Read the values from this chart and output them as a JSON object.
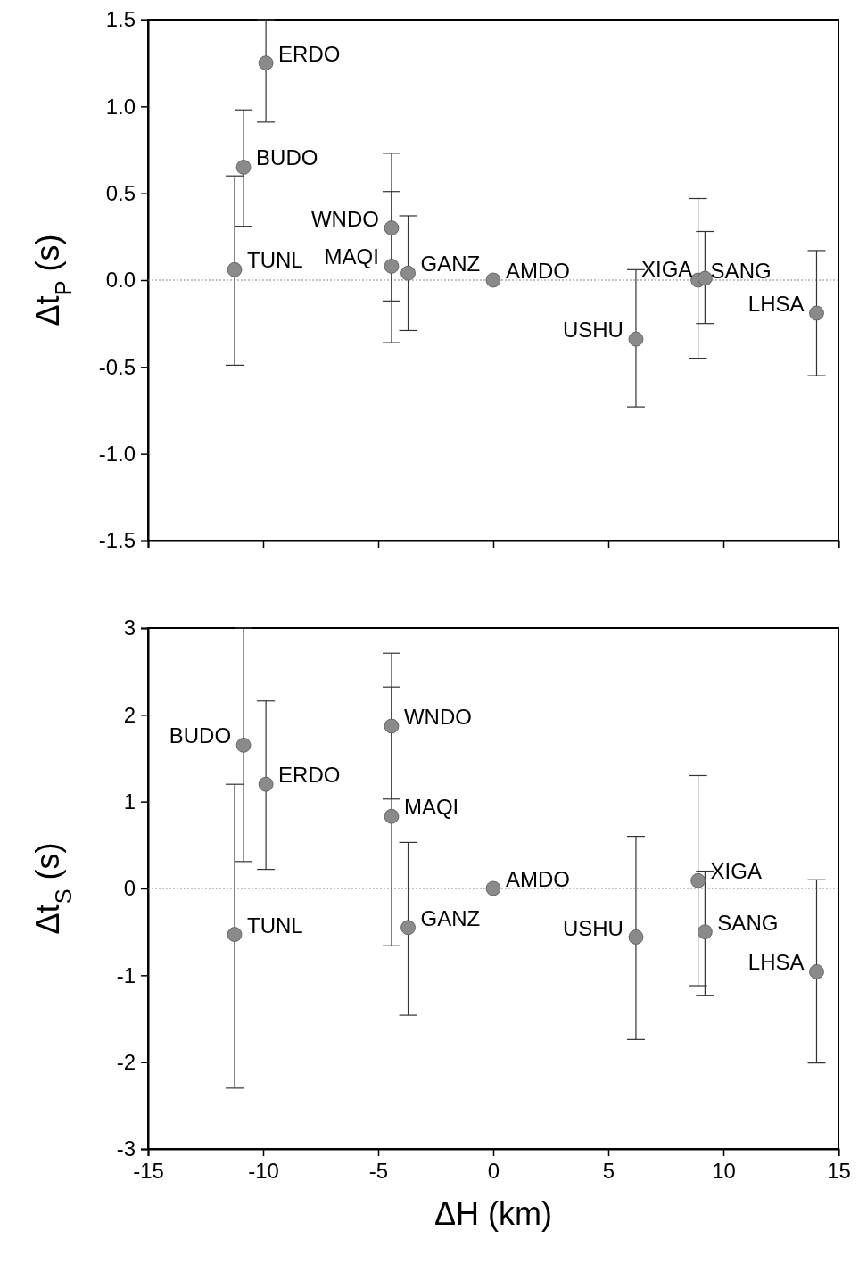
{
  "chart_data": [
    {
      "type": "scatter",
      "ylabel": "Δt$_{P}$ (s)",
      "x": [
        -11.24,
        -10.85,
        -9.88,
        -4.42,
        -4.42,
        -3.7,
        0,
        6.2,
        8.9,
        9.2,
        14.05
      ],
      "series": [
        {
          "color": "#8a8a8a",
          "values": [
            0.06,
            0.65,
            1.25,
            0.3,
            0.08,
            0.04,
            0,
            -0.34,
            0.0,
            0.01,
            -0.19
          ],
          "errors": [
            [
              -0.49,
              0.6
            ],
            [
              0.31,
              0.98
            ],
            [
              0.91,
              1.5
            ],
            [
              -0.12,
              0.73
            ],
            [
              -0.36,
              0.51
            ],
            [
              -0.29,
              0.37
            ],
            null,
            [
              -0.73,
              0.06
            ],
            [
              -0.45,
              0.47
            ],
            [
              -0.25,
              0.28
            ],
            [
              -0.55,
              0.17
            ]
          ]
        }
      ],
      "annotations": [
        {
          "text": "TUNL",
          "x": -11.24,
          "y": 0.06
        },
        {
          "text": "BUDO",
          "x": -10.85,
          "y": 0.65
        },
        {
          "text": "ERDO",
          "x": -9.88,
          "y": 1.25
        },
        {
          "text": "WNDO",
          "x": -4.42,
          "y": 0.3
        },
        {
          "text": "MAQI",
          "x": -4.42,
          "y": 0.08
        },
        {
          "text": "GANZ",
          "x": -3.7,
          "y": 0.04
        },
        {
          "text": "AMDO",
          "x": 0,
          "y": 0
        },
        {
          "text": "USHU",
          "x": 6.2,
          "y": -0.34
        },
        {
          "text": "SANG",
          "x": 8.9,
          "y": 0.0
        },
        {
          "text": "XIGA",
          "x": 9.2,
          "y": 0.01
        },
        {
          "text": "LHSA",
          "x": 14.05,
          "y": -0.19
        }
      ],
      "xlim": [
        -15,
        15
      ],
      "xticks": [
        -15,
        -10,
        -5,
        0,
        5,
        10,
        15
      ],
      "ylim": [
        -1.5,
        1.5
      ],
      "yticks": [
        -1.5,
        {
          "value": -1,
          "label": "-1.0"
        },
        -0.5,
        {
          "value": 0,
          "label": "0.0"
        },
        0.5,
        {
          "value": 1,
          "label": "1.0"
        },
        1.5
      ],
      "ref_lines": [
        {
          "axis": "y",
          "value": 0,
          "color": "#888888",
          "line_style": "dotted"
        }
      ],
      "marker": "circle",
      "tick_labels": "y",
      "grid": false
    },
    {
      "type": "scatter",
      "xlabel": "ΔH (km)",
      "ylabel": "Δt$_{S}$ (s)",
      "x": [
        -11.24,
        -10.85,
        -9.88,
        -4.42,
        -4.42,
        -3.7,
        0,
        6.2,
        8.9,
        9.2,
        14.05
      ],
      "series": [
        {
          "color": "#8a8a8a",
          "values": [
            -0.53,
            1.65,
            1.2,
            1.87,
            0.83,
            -0.45,
            0,
            -0.56,
            0.09,
            -0.5,
            -0.96
          ],
          "errors": [
            [
              -2.3,
              1.2
            ],
            [
              0.31,
              3.0
            ],
            [
              0.22,
              2.16
            ],
            [
              1.03,
              2.71
            ],
            [
              -0.66,
              2.32
            ],
            [
              -1.46,
              0.53
            ],
            null,
            [
              -1.74,
              0.6
            ],
            [
              -1.12,
              1.3
            ],
            [
              -1.23,
              0.2
            ],
            [
              -2.01,
              0.1
            ]
          ]
        }
      ],
      "annotations": [
        {
          "text": "TUNL",
          "x": -11.24,
          "y": -0.53
        },
        {
          "text": "BUDO",
          "x": -10.85,
          "y": 1.65
        },
        {
          "text": "ERDO",
          "x": -9.88,
          "y": 1.2
        },
        {
          "text": "WNDO",
          "x": -4.42,
          "y": 1.87
        },
        {
          "text": "MAQI",
          "x": -4.42,
          "y": 0.83
        },
        {
          "text": "GANZ",
          "x": -3.7,
          "y": -0.45
        },
        {
          "text": "AMDO",
          "x": 0,
          "y": 0
        },
        {
          "text": "USHU",
          "x": 6.2,
          "y": -0.56
        },
        {
          "text": "XIGA",
          "x": 8.9,
          "y": 0.09
        },
        {
          "text": "SANG",
          "x": 9.2,
          "y": -0.5
        },
        {
          "text": "LHSA",
          "x": 14.05,
          "y": -0.96
        }
      ],
      "xlim": [
        -15,
        15
      ],
      "xticks": [
        -15,
        -10,
        -5,
        0,
        5,
        10,
        15
      ],
      "ylim": [
        -3,
        3
      ],
      "yticks": [
        -3,
        -2,
        -1,
        0,
        1,
        2,
        3
      ],
      "ref_lines": [
        {
          "axis": "y",
          "value": 0,
          "color": "#888888",
          "line_style": "dotted"
        }
      ],
      "marker": "circle",
      "grid": false
    }
  ]
}
